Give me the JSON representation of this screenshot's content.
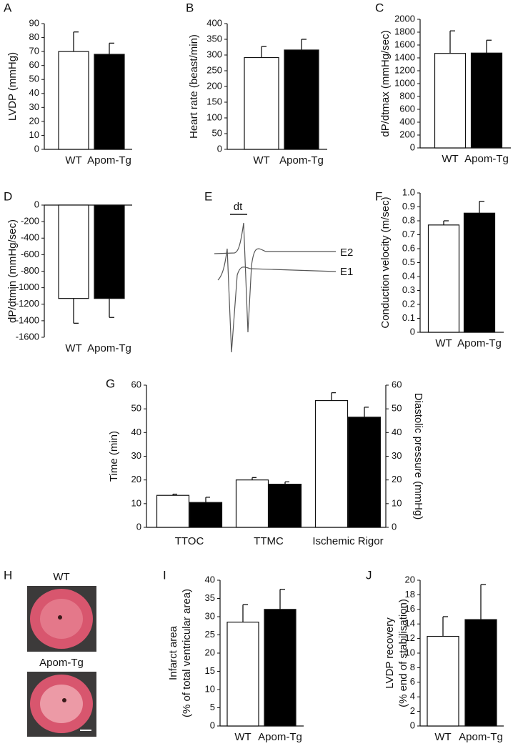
{
  "chart_data": [
    {
      "type": "bar",
      "panel": "A",
      "ylabel": [
        "LVDP (mmHg)"
      ],
      "categories": [
        "WT",
        "Apom-Tg"
      ],
      "values": [
        70,
        68
      ],
      "errors": [
        14,
        8
      ],
      "colors": [
        "#ffffff",
        "#000000"
      ],
      "ylim": [
        0,
        90
      ],
      "yticks": [
        0,
        10,
        20,
        30,
        40,
        50,
        60,
        70,
        80,
        90
      ]
    },
    {
      "type": "bar",
      "panel": "B",
      "ylabel": [
        "Heart rate (beast/min)"
      ],
      "categories": [
        "WT",
        "Apom-Tg"
      ],
      "values": [
        292,
        316
      ],
      "errors": [
        35,
        34
      ],
      "colors": [
        "#ffffff",
        "#000000"
      ],
      "ylim": [
        0,
        400
      ],
      "yticks": [
        0,
        50,
        100,
        150,
        200,
        250,
        300,
        350,
        400
      ]
    },
    {
      "type": "bar",
      "panel": "C",
      "ylabel": [
        "dP/dtmax (mmHg/sec)"
      ],
      "categories": [
        "WT",
        "Apom-Tg"
      ],
      "values": [
        1470,
        1475
      ],
      "errors": [
        350,
        200
      ],
      "colors": [
        "#ffffff",
        "#000000"
      ],
      "ylim": [
        0,
        2000
      ],
      "yticks": [
        0,
        200,
        400,
        600,
        800,
        1000,
        1200,
        1400,
        1600,
        1800,
        2000
      ]
    },
    {
      "type": "bar",
      "panel": "D",
      "ylabel": [
        "dP/dtmin (mmHg/sec)"
      ],
      "categories": [
        "WT",
        "Apom-Tg"
      ],
      "values": [
        -1130,
        -1130
      ],
      "errors": [
        300,
        230
      ],
      "colors": [
        "#ffffff",
        "#000000"
      ],
      "ylim": [
        -1600,
        0
      ],
      "yticks": [
        0,
        -200,
        -400,
        -600,
        -800,
        -1000,
        -1200,
        -1400,
        -1600
      ]
    },
    {
      "type": "bar",
      "panel": "F",
      "ylabel": [
        "Conduction velocity (m/sec)"
      ],
      "categories": [
        "WT",
        "Apom-Tg"
      ],
      "values": [
        0.77,
        0.855
      ],
      "errors": [
        0.03,
        0.085
      ],
      "colors": [
        "#ffffff",
        "#000000"
      ],
      "ylim": [
        0,
        1
      ],
      "yticks": [
        0,
        0.1,
        0.2,
        0.3,
        0.4,
        0.5,
        0.6,
        0.7,
        0.8,
        0.9,
        {
          "value": 1,
          "label": "1.0"
        }
      ]
    },
    {
      "type": "grouped-bar",
      "panel": "G",
      "ylabel": [
        "Time (min)"
      ],
      "y2label": "Diastolic pressure (mmHg)",
      "categories": [
        "TTOC",
        "TTMC",
        "Ischemic Rigor"
      ],
      "series": [
        {
          "color": "#ffffff",
          "values": [
            13.5,
            20,
            53.5
          ],
          "errors": [
            0.5,
            1,
            3.3
          ]
        },
        {
          "color": "#000000",
          "values": [
            10.5,
            18.2,
            46.5
          ],
          "errors": [
            2.2,
            1,
            4.2
          ]
        }
      ],
      "ylim": [
        0,
        60
      ],
      "yticks": [
        0,
        10,
        20,
        30,
        40,
        50,
        60
      ],
      "y2lim": [
        0,
        60
      ],
      "y2ticks": [
        0,
        10,
        20,
        30,
        40,
        50,
        60
      ]
    },
    {
      "type": "bar",
      "panel": "I",
      "ylabel": [
        "Infarct area",
        "(% of total ventricular area)"
      ],
      "categories": [
        "WT",
        "Apom-Tg"
      ],
      "values": [
        28.5,
        32
      ],
      "errors": [
        4.8,
        5.5
      ],
      "colors": [
        "#ffffff",
        "#000000"
      ],
      "ylim": [
        0,
        40
      ],
      "yticks": [
        0,
        5,
        10,
        15,
        20,
        25,
        30,
        35,
        40
      ]
    },
    {
      "type": "bar",
      "panel": "J",
      "ylabel": [
        "LVDP recovery",
        "(% end of stabilisation)"
      ],
      "categories": [
        "WT",
        "Apom-Tg"
      ],
      "values": [
        12.3,
        14.6
      ],
      "errors": [
        2.7,
        4.8
      ],
      "colors": [
        "#ffffff",
        "#000000"
      ],
      "ylim": [
        0,
        20
      ],
      "yticks": [
        0,
        2,
        4,
        6,
        8,
        10,
        12,
        14,
        16,
        18,
        20
      ]
    }
  ],
  "trace_panel": {
    "panel": "E",
    "dt_label": "dt",
    "traces": [
      "E2",
      "E1"
    ]
  },
  "image_panel": {
    "panel": "H",
    "labels": [
      "WT",
      "Apom-Tg"
    ]
  }
}
